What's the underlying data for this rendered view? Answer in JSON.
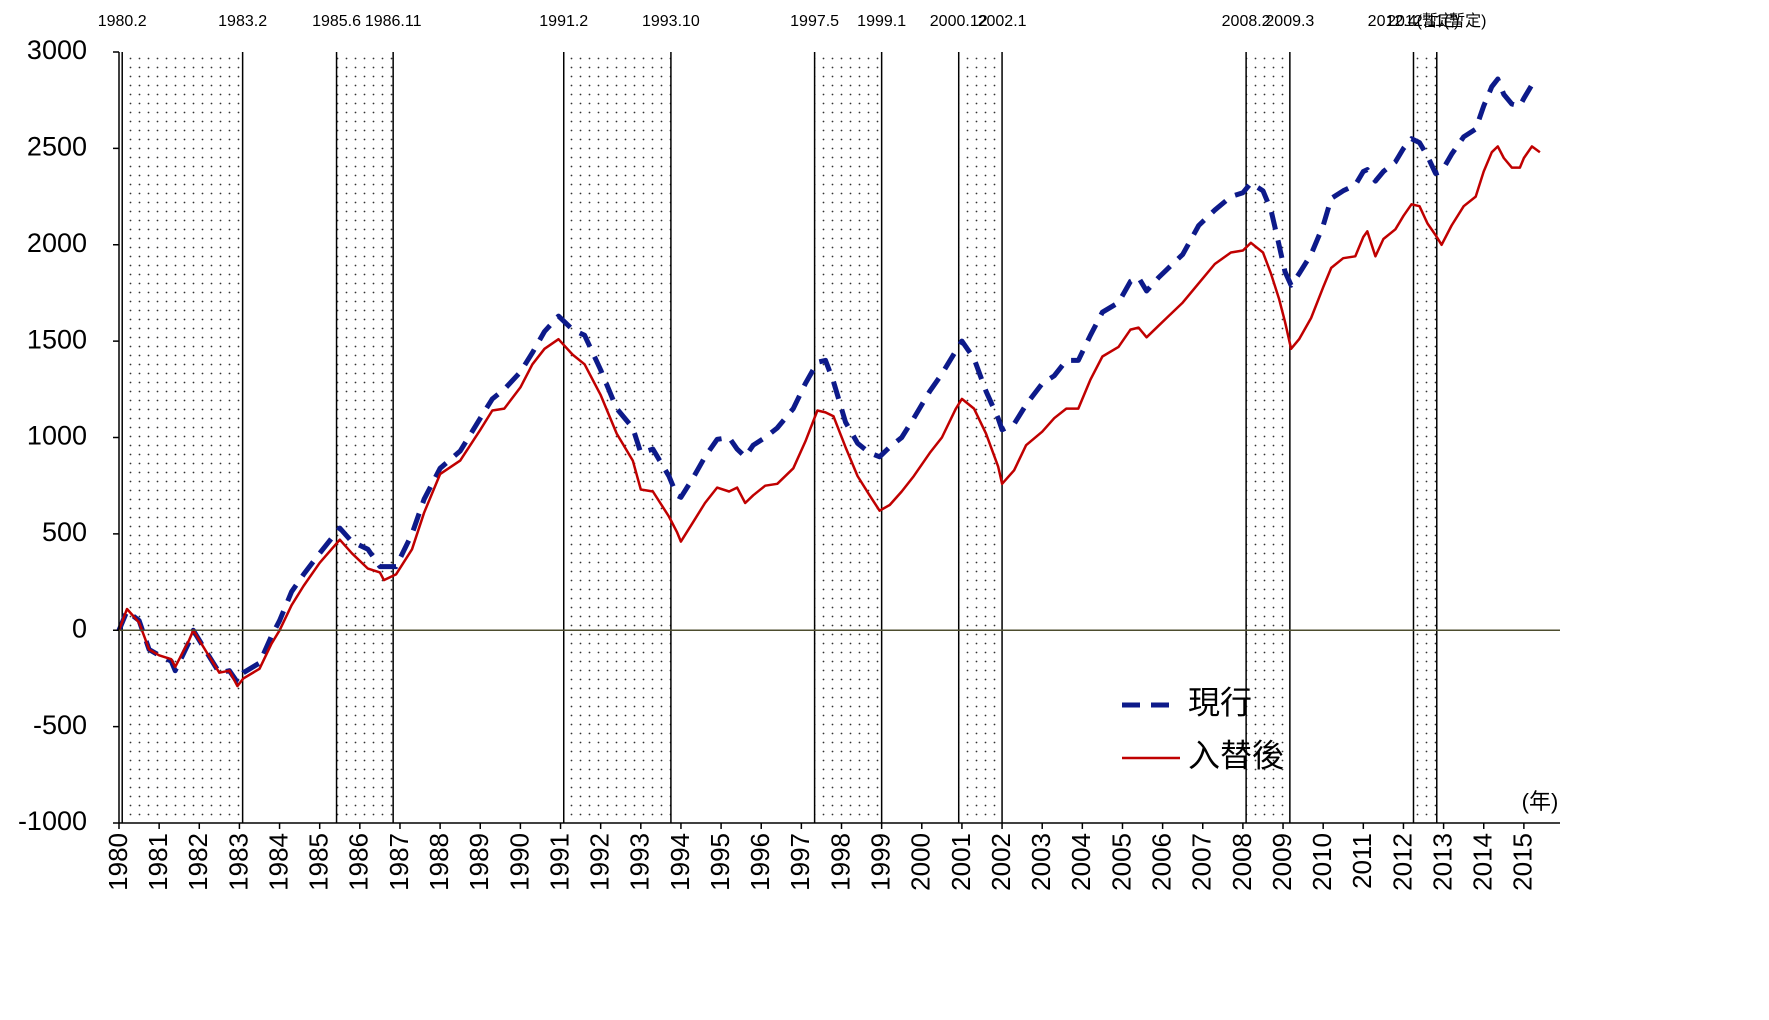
{
  "chart_data": {
    "type": "line",
    "x_unit": "(年)",
    "xlim": [
      1980,
      2015.9
    ],
    "ylim": [
      -1000,
      3000
    ],
    "xticks": [
      1980,
      1981,
      1982,
      1983,
      1984,
      1985,
      1986,
      1987,
      1988,
      1989,
      1990,
      1991,
      1992,
      1993,
      1994,
      1995,
      1996,
      1997,
      1998,
      1999,
      2000,
      2001,
      2002,
      2003,
      2004,
      2005,
      2006,
      2007,
      2008,
      2009,
      2010,
      2011,
      2012,
      2013,
      2014,
      2015
    ],
    "yticks": [
      -1000,
      -500,
      0,
      500,
      1000,
      1500,
      2000,
      2500,
      3000
    ],
    "grid": false,
    "legend": "lower-right",
    "periods": [
      {
        "start": {
          "value": 1980.08,
          "label": "1980.2"
        },
        "end": {
          "value": 1983.08,
          "label": "1983.2"
        }
      },
      {
        "start": {
          "value": 1985.42,
          "label": "1985.6"
        },
        "end": {
          "value": 1986.83,
          "label": "1986.11"
        }
      },
      {
        "start": {
          "value": 1991.08,
          "label": "1991.2"
        },
        "end": {
          "value": 1993.75,
          "label": "1993.10"
        }
      },
      {
        "start": {
          "value": 1997.33,
          "label": "1997.5"
        },
        "end": {
          "value": 1999.0,
          "label": "1999.1"
        }
      },
      {
        "start": {
          "value": 2000.92,
          "label": "2000.12"
        },
        "end": {
          "value": 2002.0,
          "label": "2002.1"
        }
      },
      {
        "start": {
          "value": 2008.08,
          "label": "2008.2"
        },
        "end": {
          "value": 2009.17,
          "label": "2009.3"
        }
      },
      {
        "start": {
          "value": 2012.25,
          "label": "2012.4(暫定)"
        },
        "end": {
          "value": 2012.83,
          "label": "2012.11(暫定)"
        }
      }
    ],
    "x": [
      1980.0,
      1980.2,
      1980.5,
      1980.75,
      1981.0,
      1981.3,
      1981.4,
      1981.75,
      1981.85,
      1982.2,
      1982.5,
      1982.75,
      1982.95,
      1983.1,
      1983.5,
      1983.8,
      1984.0,
      1984.3,
      1984.6,
      1985.0,
      1985.5,
      1985.8,
      1986.2,
      1986.5,
      1986.6,
      1986.9,
      1987.3,
      1987.6,
      1988.0,
      1988.5,
      1989.0,
      1989.3,
      1989.6,
      1990.0,
      1990.3,
      1990.6,
      1990.95,
      1991.3,
      1991.6,
      1992.0,
      1992.4,
      1992.8,
      1993.0,
      1993.3,
      1993.7,
      1993.9,
      1994.0,
      1994.3,
      1994.6,
      1994.9,
      1995.2,
      1995.4,
      1995.6,
      1995.8,
      1996.1,
      1996.4,
      1996.8,
      1997.1,
      1997.4,
      1997.6,
      1997.8,
      1998.1,
      1998.4,
      1998.7,
      1998.95,
      1999.2,
      1999.5,
      1999.8,
      2000.2,
      2000.5,
      2000.85,
      2001.0,
      2001.3,
      2001.6,
      2001.9,
      2002.0,
      2002.3,
      2002.6,
      2003.0,
      2003.3,
      2003.6,
      2003.9,
      2004.2,
      2004.5,
      2004.9,
      2005.2,
      2005.4,
      2005.6,
      2005.9,
      2006.1,
      2006.5,
      2006.9,
      2007.3,
      2007.7,
      2008.0,
      2008.2,
      2008.5,
      2008.7,
      2008.9,
      2009.05,
      2009.2,
      2009.4,
      2009.7,
      2010.0,
      2010.2,
      2010.5,
      2010.8,
      2011.0,
      2011.1,
      2011.3,
      2011.5,
      2011.8,
      2012.0,
      2012.2,
      2012.4,
      2012.6,
      2012.8,
      2012.95,
      2013.2,
      2013.5,
      2013.8,
      2014.0,
      2014.2,
      2014.35,
      2014.5,
      2014.7,
      2014.9,
      2015.0,
      2015.2,
      2015.4
    ],
    "series": [
      {
        "name": "現行",
        "color": "#0d1a8a",
        "dash": true,
        "values": [
          0,
          100,
          50,
          -100,
          -130,
          -160,
          -210,
          -60,
          0,
          -120,
          -220,
          -210,
          -270,
          -220,
          -170,
          -30,
          50,
          200,
          290,
          400,
          530,
          460,
          420,
          330,
          330,
          330,
          500,
          680,
          840,
          930,
          1100,
          1200,
          1250,
          1340,
          1440,
          1550,
          1630,
          1560,
          1530,
          1350,
          1150,
          1050,
          920,
          940,
          800,
          700,
          690,
          790,
          900,
          990,
          1000,
          940,
          900,
          960,
          1000,
          1050,
          1150,
          1280,
          1390,
          1400,
          1290,
          1080,
          970,
          920,
          900,
          950,
          1000,
          1100,
          1240,
          1330,
          1450,
          1500,
          1410,
          1240,
          1100,
          1040,
          1070,
          1170,
          1280,
          1320,
          1400,
          1400,
          1530,
          1650,
          1700,
          1810,
          1830,
          1760,
          1830,
          1870,
          1950,
          2100,
          2180,
          2250,
          2270,
          2320,
          2280,
          2180,
          2000,
          1860,
          1790,
          1850,
          1950,
          2100,
          2240,
          2280,
          2310,
          2380,
          2390,
          2330,
          2380,
          2430,
          2500,
          2550,
          2530,
          2460,
          2370,
          2380,
          2470,
          2560,
          2600,
          2720,
          2820,
          2860,
          2780,
          2730,
          2720,
          2760,
          2830,
          2810
        ]
      },
      {
        "name": "入替後",
        "color": "#c00000",
        "dash": false,
        "values": [
          0,
          110,
          40,
          -100,
          -130,
          -150,
          -190,
          -50,
          0,
          -120,
          -220,
          -210,
          -290,
          -250,
          -200,
          -70,
          0,
          130,
          230,
          350,
          470,
          400,
          320,
          300,
          260,
          290,
          420,
          610,
          810,
          880,
          1040,
          1140,
          1150,
          1260,
          1380,
          1460,
          1510,
          1430,
          1380,
          1220,
          1020,
          880,
          730,
          720,
          590,
          510,
          460,
          560,
          660,
          740,
          720,
          740,
          660,
          700,
          750,
          760,
          840,
          980,
          1140,
          1130,
          1110,
          950,
          800,
          700,
          620,
          650,
          720,
          800,
          920,
          1000,
          1150,
          1200,
          1150,
          1020,
          850,
          760,
          830,
          960,
          1030,
          1100,
          1150,
          1150,
          1300,
          1420,
          1470,
          1560,
          1570,
          1520,
          1580,
          1620,
          1700,
          1800,
          1900,
          1960,
          1970,
          2010,
          1960,
          1850,
          1720,
          1600,
          1460,
          1510,
          1620,
          1780,
          1880,
          1930,
          1940,
          2040,
          2070,
          1940,
          2030,
          2080,
          2150,
          2210,
          2200,
          2110,
          2050,
          2000,
          2100,
          2200,
          2250,
          2380,
          2480,
          2510,
          2450,
          2400,
          2400,
          2450,
          2510,
          2480
        ]
      }
    ]
  }
}
